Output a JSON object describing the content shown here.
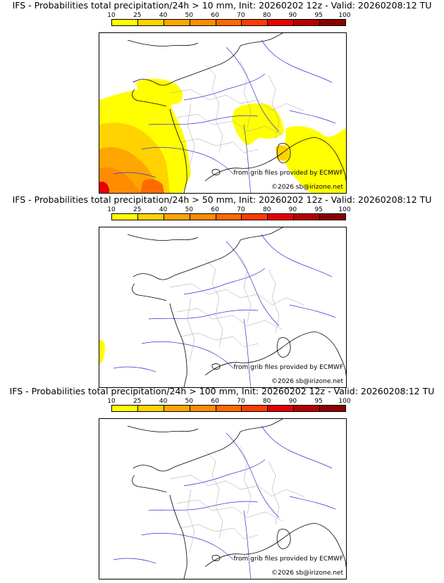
{
  "scale": {
    "labels": [
      "10",
      "25",
      "40",
      "50",
      "60",
      "70",
      "80",
      "90",
      "95",
      "100"
    ],
    "colors": [
      "#ffff00",
      "#ffd200",
      "#ffa500",
      "#ff8c00",
      "#ff6a00",
      "#ff3c00",
      "#e60000",
      "#b40000",
      "#8c0000",
      "#600000"
    ]
  },
  "credits": {
    "source": "from grib files provided by ECMWF",
    "copyright": "©2026 sb@irizone.net"
  },
  "map_colors": {
    "coast": "#000000",
    "rivers": "#3232d2",
    "borders": "#a0a0a0"
  },
  "panels": [
    {
      "title": "IFS - Probabilities total precipitation/24h > 10 mm, Init: 20260202 12z - Valid: 20260208:12 TU",
      "threshold_mm": 10
    },
    {
      "title": "IFS - Probabilities total precipitation/24h > 50 mm, Init: 20260202 12z - Valid: 20260208:12 TU",
      "threshold_mm": 50
    },
    {
      "title": "IFS - Probabilities total precipitation/24h > 100 mm, Init: 20260202 12z - Valid: 20260208:12 TU",
      "threshold_mm": 100
    }
  ]
}
